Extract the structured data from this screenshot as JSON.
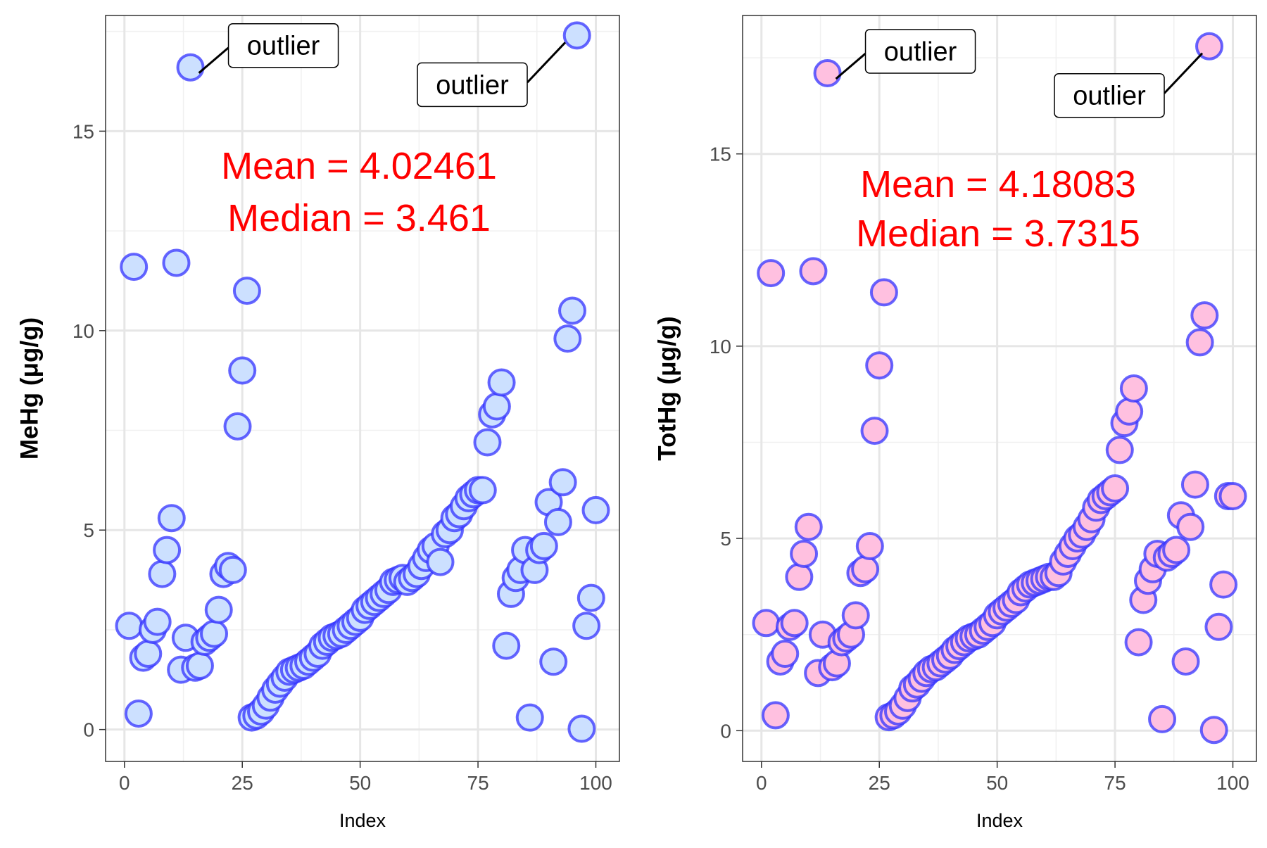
{
  "chart_data": [
    {
      "type": "scatter",
      "xlabel": "Index",
      "ylabel": "MeHg (μg/g)",
      "xlim": [
        -4,
        105
      ],
      "ylim": [
        -0.8,
        17.9
      ],
      "xticks": [
        0,
        25,
        50,
        75,
        100
      ],
      "yticks": [
        0,
        5,
        10,
        15
      ],
      "grid": true,
      "stats": [
        "Mean = 4.02461",
        "Median = 3.461"
      ],
      "marker_fill": "#cce0ff",
      "marker_stroke": "#3333ff",
      "stats_color": "#ff0000",
      "annotations": [
        {
          "text": "outlier",
          "x": 14,
          "y": 16.6
        },
        {
          "text": "outlier",
          "x": 95,
          "y": 17.4
        }
      ],
      "x": [
        1,
        2,
        3,
        4,
        5,
        6,
        7,
        8,
        9,
        10,
        11,
        12,
        13,
        14,
        15,
        16,
        17,
        18,
        19,
        20,
        21,
        22,
        23,
        24,
        25,
        26,
        27,
        28,
        29,
        30,
        31,
        32,
        33,
        34,
        35,
        36,
        37,
        38,
        39,
        40,
        41,
        42,
        43,
        44,
        45,
        46,
        47,
        48,
        49,
        50,
        51,
        52,
        53,
        54,
        55,
        56,
        57,
        58,
        59,
        60,
        61,
        62,
        63,
        64,
        65,
        66,
        67,
        68,
        69,
        70,
        71,
        72,
        73,
        74,
        75,
        76,
        77,
        78,
        79,
        80,
        81,
        82,
        83,
        84,
        85,
        86,
        87,
        88,
        89,
        90,
        91,
        92,
        93,
        94,
        95,
        96,
        97,
        98,
        99,
        100
      ],
      "y": [
        2.6,
        11.6,
        0.4,
        1.8,
        1.9,
        2.5,
        2.7,
        3.9,
        4.5,
        5.3,
        11.7,
        1.5,
        2.3,
        16.6,
        1.55,
        1.6,
        2.2,
        2.3,
        2.4,
        3.0,
        3.9,
        4.1,
        4.0,
        7.6,
        9.0,
        11.0,
        0.3,
        0.35,
        0.45,
        0.6,
        0.8,
        1.0,
        1.15,
        1.3,
        1.45,
        1.5,
        1.55,
        1.6,
        1.7,
        1.8,
        1.9,
        2.1,
        2.2,
        2.3,
        2.35,
        2.4,
        2.5,
        2.6,
        2.7,
        2.8,
        3.0,
        3.1,
        3.2,
        3.3,
        3.4,
        3.5,
        3.7,
        3.75,
        3.8,
        3.7,
        3.8,
        3.9,
        4.1,
        4.3,
        4.5,
        4.6,
        4.2,
        4.9,
        5.0,
        5.3,
        5.4,
        5.6,
        5.8,
        5.9,
        6.0,
        6.0,
        7.2,
        7.9,
        8.1,
        8.7,
        2.1,
        3.4,
        3.8,
        4.0,
        4.5,
        0.3,
        4.0,
        4.5,
        4.6,
        5.7,
        1.7,
        5.2,
        6.2,
        9.8,
        10.5,
        17.4,
        0.02,
        2.6,
        3.3,
        5.5
      ]
    },
    {
      "type": "scatter",
      "xlabel": "Index",
      "ylabel": "TotHg (μg/g)",
      "xlim": [
        -4,
        105
      ],
      "ylim": [
        -0.8,
        18.6
      ],
      "xticks": [
        0,
        25,
        50,
        75,
        100
      ],
      "yticks": [
        0,
        5,
        10,
        15
      ],
      "grid": true,
      "stats": [
        "Mean = 4.18083",
        "Median = 3.7315"
      ],
      "marker_fill": "#ffc0e0",
      "marker_stroke": "#3333ff",
      "stats_color": "#ff0000",
      "annotations": [
        {
          "text": "outlier",
          "x": 14,
          "y": 17.1
        },
        {
          "text": "outlier",
          "x": 95,
          "y": 17.8
        }
      ],
      "x": [
        1,
        2,
        3,
        4,
        5,
        6,
        7,
        8,
        9,
        10,
        11,
        12,
        13,
        14,
        15,
        16,
        17,
        18,
        19,
        20,
        21,
        22,
        23,
        24,
        25,
        26,
        27,
        28,
        29,
        30,
        31,
        32,
        33,
        34,
        35,
        36,
        37,
        38,
        39,
        40,
        41,
        42,
        43,
        44,
        45,
        46,
        47,
        48,
        49,
        50,
        51,
        52,
        53,
        54,
        55,
        56,
        57,
        58,
        59,
        60,
        61,
        62,
        63,
        64,
        65,
        66,
        67,
        68,
        69,
        70,
        71,
        72,
        73,
        74,
        75,
        76,
        77,
        78,
        79,
        80,
        81,
        82,
        83,
        84,
        85,
        86,
        87,
        88,
        89,
        90,
        91,
        92,
        93,
        94,
        95,
        96,
        97,
        98,
        99,
        100
      ],
      "y": [
        2.8,
        11.9,
        0.4,
        1.8,
        2.0,
        2.7,
        2.8,
        4.0,
        4.6,
        5.3,
        11.95,
        1.5,
        2.5,
        17.1,
        1.65,
        1.75,
        2.3,
        2.4,
        2.5,
        3.0,
        4.1,
        4.2,
        4.8,
        7.8,
        9.5,
        11.4,
        0.35,
        0.4,
        0.5,
        0.65,
        0.85,
        1.1,
        1.2,
        1.35,
        1.5,
        1.6,
        1.65,
        1.75,
        1.85,
        1.95,
        2.1,
        2.2,
        2.3,
        2.4,
        2.45,
        2.5,
        2.6,
        2.7,
        2.8,
        3.0,
        3.1,
        3.2,
        3.3,
        3.4,
        3.6,
        3.7,
        3.8,
        3.85,
        3.9,
        3.95,
        4.0,
        4.0,
        4.1,
        4.4,
        4.6,
        4.8,
        5.0,
        5.1,
        5.3,
        5.5,
        5.8,
        6.0,
        6.1,
        6.2,
        6.3,
        7.3,
        8.0,
        8.3,
        8.9,
        2.3,
        3.4,
        3.9,
        4.2,
        4.6,
        0.3,
        4.5,
        4.6,
        4.7,
        5.6,
        1.8,
        5.3,
        6.4,
        10.1,
        10.8,
        17.8,
        0.02,
        2.7,
        3.8,
        6.1,
        6.1
      ]
    }
  ]
}
